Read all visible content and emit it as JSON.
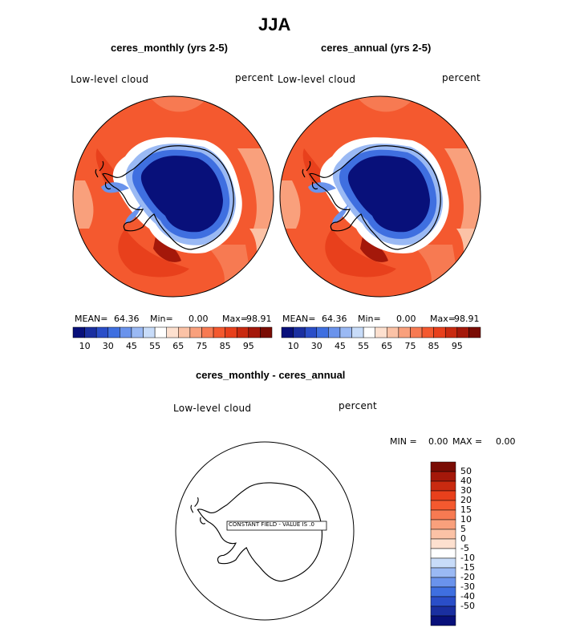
{
  "chart_data": [
    {
      "type": "heatmap",
      "projection": "south-polar-stereographic",
      "suptitle": "JJA",
      "title": "ceres_monthly (yrs 2-5)",
      "variable": "Low-level cloud",
      "units": "percent",
      "stats": {
        "mean_label": "MEAN=",
        "mean": "64.36",
        "min_label": "Min=",
        "min": "0.00",
        "max_label": "Max=",
        "max": "98.91"
      },
      "levels": [
        10,
        15,
        20,
        30,
        35,
        40,
        45,
        50,
        55,
        60,
        65,
        70,
        75,
        80,
        85,
        90,
        95
      ],
      "colorbar_ticks": [
        "10",
        "30",
        "45",
        "55",
        "65",
        "75",
        "85",
        "95"
      ],
      "colors": [
        "#08107a",
        "#1a2fa0",
        "#2a4ec8",
        "#3f6fe0",
        "#6a93ec",
        "#9ab9f4",
        "#c8dcf9",
        "#ffffff",
        "#fde0cf",
        "#fbc2a6",
        "#f9a07c",
        "#f77a52",
        "#f4592f",
        "#e8401c",
        "#c92a10",
        "#a4180a",
        "#7a0c04"
      ]
    },
    {
      "type": "heatmap",
      "projection": "south-polar-stereographic",
      "title": "ceres_annual (yrs 2-5)",
      "variable": "Low-level cloud",
      "units": "percent",
      "stats": {
        "mean_label": "MEAN=",
        "mean": "64.36",
        "min_label": "Min=",
        "min": "0.00",
        "max_label": "Max=",
        "max": "98.91"
      },
      "colorbar_ticks": [
        "10",
        "30",
        "45",
        "55",
        "65",
        "75",
        "85",
        "95"
      ]
    },
    {
      "type": "heatmap",
      "projection": "south-polar-stereographic",
      "title": "ceres_monthly - ceres_annual",
      "variable": "Low-level cloud",
      "units": "percent",
      "stats": {
        "min_label": "MIN =",
        "min": "0.00",
        "max_label": "MAX =",
        "max": "0.00"
      },
      "annotation": "CONSTANT FIELD - VALUE IS .0",
      "colorbar_ticks": [
        "50",
        "40",
        "30",
        "20",
        "15",
        "10",
        "5",
        "0",
        "-5",
        "-10",
        "-15",
        "-20",
        "-30",
        "-40",
        "-50"
      ],
      "colors": [
        "#7a0c04",
        "#a4180a",
        "#c92a10",
        "#e8401c",
        "#f4592f",
        "#f77a52",
        "#f9a07c",
        "#fbc2a6",
        "#fde0cf",
        "#ffffff",
        "#c8dcf9",
        "#9ab9f4",
        "#6a93ec",
        "#3f6fe0",
        "#2a4ec8",
        "#1a2fa0",
        "#08107a"
      ]
    }
  ]
}
